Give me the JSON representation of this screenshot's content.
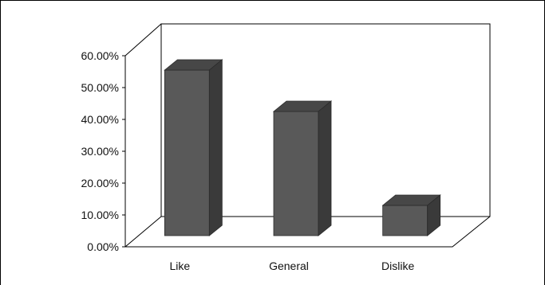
{
  "chart_data": {
    "type": "bar",
    "categories": [
      "Like",
      "General",
      "Dislike"
    ],
    "values": [
      52.0,
      39.0,
      9.5
    ],
    "ylim": [
      0,
      60
    ],
    "yticks": [
      "0.00%",
      "10.00%",
      "20.00%",
      "30.00%",
      "40.00%",
      "50.00%",
      "60.00%"
    ],
    "title": "",
    "xlabel": "",
    "ylabel": "",
    "grid": false,
    "legend": "none",
    "colors": {
      "bar_front": "#595959",
      "bar_top": "#474747",
      "bar_side": "#3a3a3a",
      "axis": "#000000"
    }
  }
}
